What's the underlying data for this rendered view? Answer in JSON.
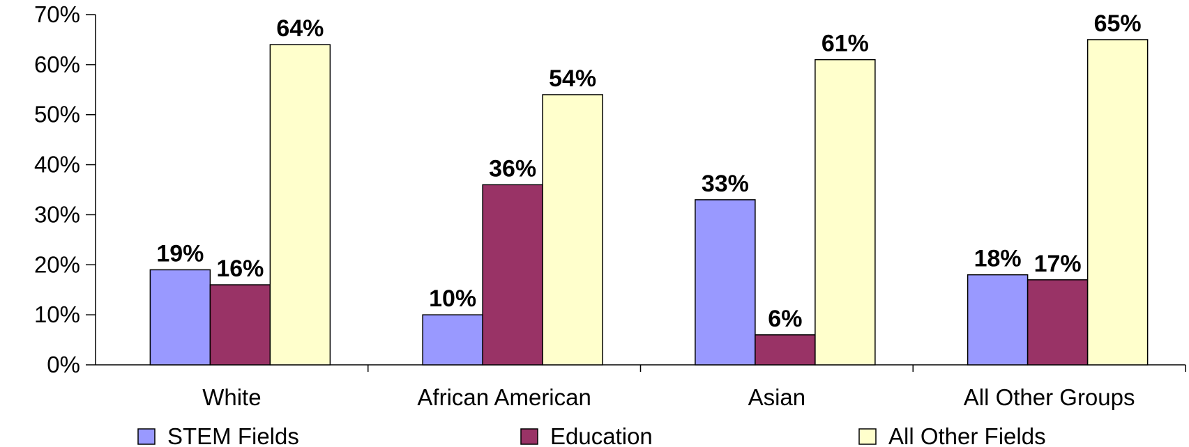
{
  "chart_data": {
    "type": "bar",
    "title": "",
    "xlabel": "",
    "ylabel": "",
    "categories": [
      "White",
      "African American",
      "Asian",
      "All Other Groups"
    ],
    "series": [
      {
        "name": "STEM Fields",
        "values": [
          19,
          10,
          33,
          18
        ],
        "color": "#9999FF"
      },
      {
        "name": "Education",
        "values": [
          16,
          36,
          6,
          17
        ],
        "color": "#993366"
      },
      {
        "name": "All Other Fields",
        "values": [
          64,
          54,
          61,
          65
        ],
        "color": "#FFFFCC"
      }
    ],
    "data_labels": [
      [
        "19%",
        "16%",
        "64%"
      ],
      [
        "10%",
        "36%",
        "54%"
      ],
      [
        "33%",
        "6%",
        "61%"
      ],
      [
        "18%",
        "17%",
        "65%"
      ]
    ],
    "y_ticks": [
      "0%",
      "10%",
      "20%",
      "30%",
      "40%",
      "50%",
      "60%",
      "70%"
    ],
    "ylim": [
      0,
      70
    ],
    "y_step": 10,
    "grid": false,
    "legend_position": "bottom"
  }
}
